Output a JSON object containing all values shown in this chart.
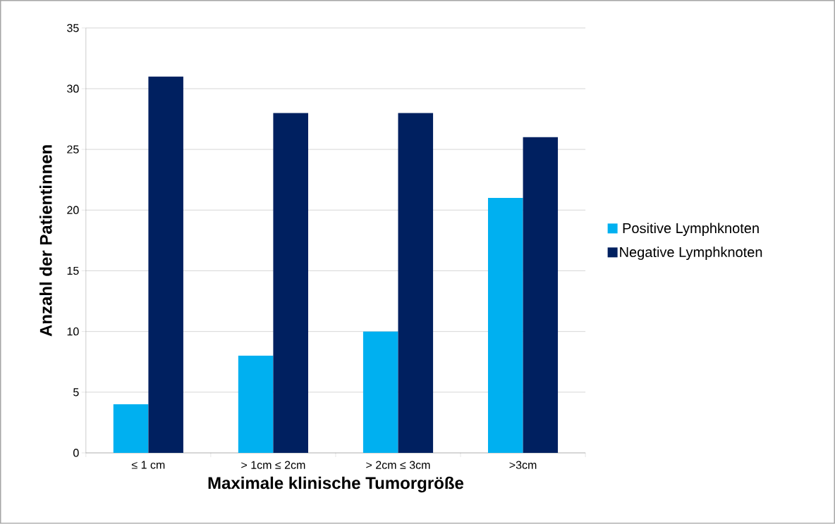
{
  "chart_data": {
    "type": "bar",
    "xlabel": "Maximale klinische Tumorgröße",
    "ylabel": "Anzahl der Patientinnen",
    "categories": [
      "≤ 1 cm",
      "> 1cm ≤ 2cm",
      "> 2cm ≤ 3cm",
      ">3cm"
    ],
    "series": [
      {
        "name": "Positive Lymphknoten",
        "color": "#00b0f0",
        "values": [
          4,
          8,
          10,
          21
        ]
      },
      {
        "name": "Negative Lymphknoten",
        "color": "#002060",
        "values": [
          31,
          28,
          28,
          26
        ]
      }
    ],
    "ylim": [
      0,
      35
    ],
    "yticks": [
      0,
      5,
      10,
      15,
      20,
      25,
      30,
      35
    ],
    "grid": "y",
    "legend": "right"
  }
}
